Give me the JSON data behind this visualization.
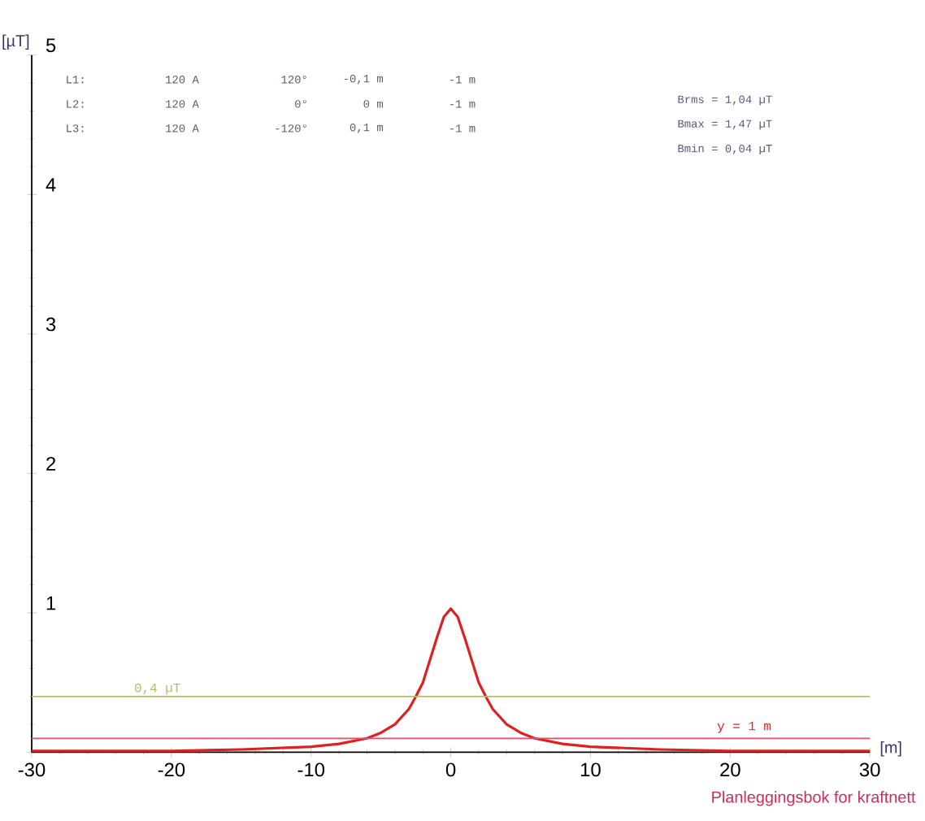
{
  "chart_data": {
    "type": "line",
    "xlabel": "[m]",
    "ylabel": "[µT]",
    "x": [
      -30,
      -20,
      -15,
      -10,
      -8,
      -6,
      -5,
      -4,
      -3,
      -2.5,
      -2,
      -1.5,
      -1,
      -0.5,
      0,
      0.5,
      1,
      1.5,
      2,
      2.5,
      3,
      4,
      5,
      6,
      8,
      10,
      15,
      20,
      30
    ],
    "series": [
      {
        "name": "y = 1 m",
        "color": "#e0201e",
        "values": [
          0.01,
          0.01,
          0.02,
          0.04,
          0.06,
          0.1,
          0.14,
          0.2,
          0.31,
          0.4,
          0.5,
          0.66,
          0.82,
          0.97,
          1.03,
          0.97,
          0.82,
          0.66,
          0.5,
          0.4,
          0.31,
          0.2,
          0.14,
          0.1,
          0.06,
          0.04,
          0.02,
          0.01,
          0.01
        ]
      }
    ],
    "xlim": [
      -30,
      30
    ],
    "ylim": [
      0,
      5
    ],
    "xticks": [
      -30,
      -20,
      -10,
      0,
      10,
      20,
      30
    ],
    "yticks": [
      {
        "value": 0,
        "label": null
      },
      1,
      2,
      3,
      4,
      5
    ],
    "ref_lines": [
      {
        "axis": "y",
        "value": 0.4,
        "label": "0,4 µT",
        "color": "#b8bc70"
      },
      {
        "axis": "y",
        "value": 0.1,
        "color": "#e8506a"
      }
    ],
    "annotations": [
      "L1:",
      "120 A",
      "120°",
      "-0,1 m",
      "-1 m",
      "L2:",
      "120 A",
      "0°",
      "0 m",
      "-1 m",
      "L3:",
      "120 A",
      "-120°",
      "0,1 m",
      "-1 m",
      "Brms = 1,04 µT",
      "Bmax = 1,47 µT",
      "Bmin = 0,04 µT",
      "Planleggingsbok for kraftnett"
    ],
    "grid": false,
    "marker": "none",
    "line_style": "solid"
  }
}
